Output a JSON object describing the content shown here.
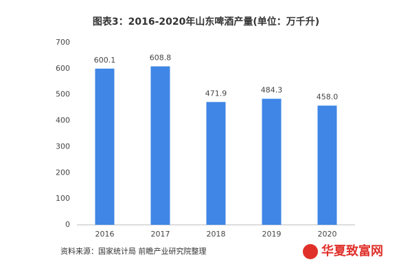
{
  "chart_data": {
    "type": "bar",
    "title": "图表3：2016-2020年山东啤酒产量(单位：万千升)",
    "categories": [
      "2016",
      "2017",
      "2018",
      "2019",
      "2020"
    ],
    "values": [
      600.1,
      608.8,
      471.9,
      484.3,
      458.0
    ],
    "value_labels": [
      "600.1",
      "608.8",
      "471.9",
      "484.3",
      "458.0"
    ],
    "color": "#3f86e6",
    "ylim": [
      0,
      700
    ],
    "yticks": [
      0,
      100,
      200,
      300,
      400,
      500,
      600,
      700
    ],
    "grid": false
  },
  "source": "资料来源：国家统计局 前瞻产业研究院整理",
  "logo": "华夏致富网"
}
